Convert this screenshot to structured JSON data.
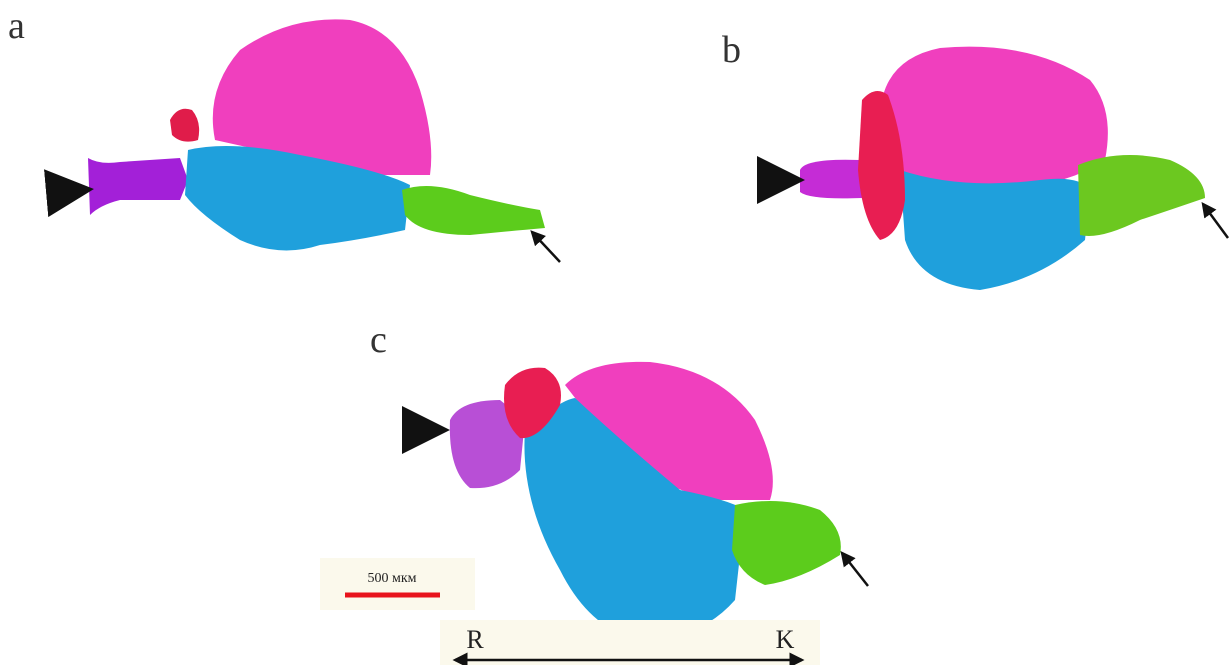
{
  "panels": [
    {
      "label": "a"
    },
    {
      "label": "b"
    },
    {
      "label": "c"
    }
  ],
  "scale_bar": {
    "label": "500 мкм"
  },
  "orientation": {
    "left": "R",
    "right": "K"
  }
}
